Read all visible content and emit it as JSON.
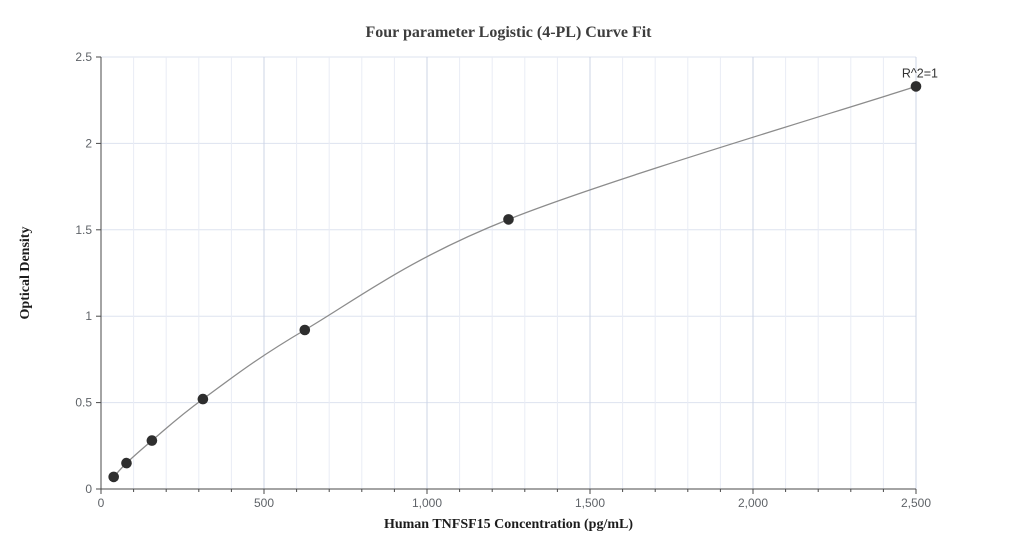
{
  "chart_data": {
    "type": "scatter",
    "title": "Four parameter Logistic (4-PL) Curve Fit",
    "xlabel": "Human TNFSF15 Concentration (pg/mL)",
    "ylabel": "Optical Density",
    "annotation": "R^2=1",
    "xlim": [
      0,
      2500
    ],
    "ylim": [
      0,
      2.5
    ],
    "x_minor_step": 100,
    "grid": true,
    "legend_position": "none",
    "x_ticks": [
      {
        "v": 0,
        "label": "0"
      },
      {
        "v": 500,
        "label": "500"
      },
      {
        "v": 1000,
        "label": "1,000"
      },
      {
        "v": 1500,
        "label": "1,500"
      },
      {
        "v": 2000,
        "label": "2,000"
      },
      {
        "v": 2500,
        "label": "2,500"
      }
    ],
    "y_ticks": [
      {
        "v": 0,
        "label": "0"
      },
      {
        "v": 0.5,
        "label": "0.5"
      },
      {
        "v": 1,
        "label": "1"
      },
      {
        "v": 1.5,
        "label": "1.5"
      },
      {
        "v": 2,
        "label": "2"
      },
      {
        "v": 2.5,
        "label": "2.5"
      }
    ],
    "points": [
      {
        "x": 39.06,
        "y": 0.07
      },
      {
        "x": 78.13,
        "y": 0.15
      },
      {
        "x": 156.25,
        "y": 0.28
      },
      {
        "x": 312.5,
        "y": 0.52
      },
      {
        "x": 625,
        "y": 0.92
      },
      {
        "x": 1250,
        "y": 1.56
      },
      {
        "x": 2500,
        "y": 2.33
      }
    ],
    "colors": {
      "point": "#2e2e2e",
      "curve": "#8c8c8c",
      "axis": "#4a4a4a",
      "tick_label": "#5f6368",
      "grid_h": "#dde3ef",
      "grid_minor": "#e9ecf5",
      "grid_major": "#ccd4e6",
      "annotation": "#333333",
      "title": "#3d3d3d"
    }
  }
}
